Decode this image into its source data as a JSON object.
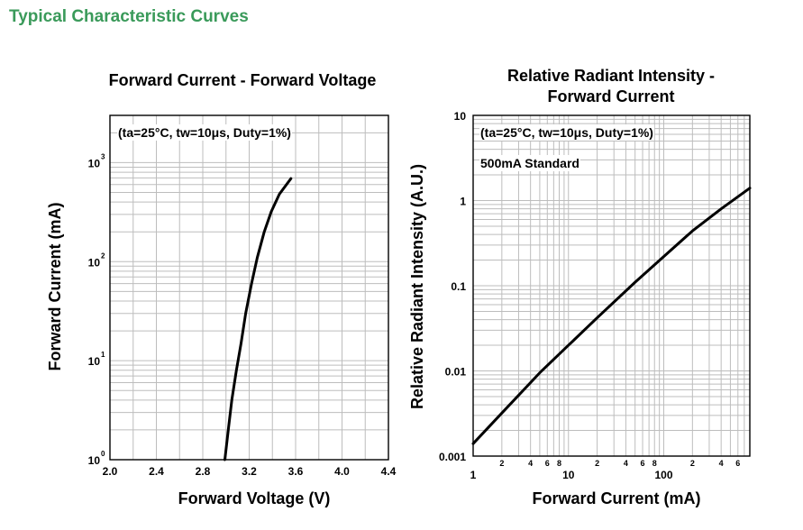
{
  "page": {
    "section_title": "Typical Characteristic Curves"
  },
  "chart_data": [
    {
      "type": "line",
      "title": "Forward Current - Forward Voltage",
      "xlabel": "Forward Voltage (V)",
      "ylabel": "Forward Current (mA)",
      "xscale": "linear",
      "yscale": "log",
      "xlim": [
        2.0,
        4.4
      ],
      "ylim": [
        1,
        3000
      ],
      "x_ticks": [
        "2.0",
        "2.4",
        "2.8",
        "3.2",
        "3.6",
        "4.0",
        "4.4"
      ],
      "y_ticks": [
        {
          "base": "10",
          "exp": "0",
          "value": 1
        },
        {
          "base": "10",
          "exp": "1",
          "value": 10
        },
        {
          "base": "10",
          "exp": "2",
          "value": 100
        },
        {
          "base": "10",
          "exp": "3",
          "value": 1000
        }
      ],
      "annotation": "(ta=25°C, tw=10μs, Duty=1%)",
      "grid": true,
      "series": [
        {
          "x": [
            2.99,
            3.02,
            3.05,
            3.09,
            3.13,
            3.17,
            3.22,
            3.27,
            3.33,
            3.39,
            3.46,
            3.56
          ],
          "y": [
            1,
            2,
            4,
            8,
            15,
            30,
            60,
            110,
            200,
            320,
            480,
            690
          ]
        }
      ]
    },
    {
      "type": "line",
      "title_lines": [
        "Relative Radiant Intensity -",
        "Forward Current"
      ],
      "xlabel": "Forward Current (mA)",
      "ylabel": "Relative Radiant Intensity (A.U.)",
      "xscale": "log",
      "yscale": "log",
      "xlim": [
        1,
        800
      ],
      "ylim": [
        0.001,
        10
      ],
      "x_major_ticks": [
        {
          "label": "1",
          "value": 1
        },
        {
          "label": "10",
          "value": 10
        },
        {
          "label": "100",
          "value": 100
        }
      ],
      "x_minor_ticks": [
        {
          "label": "2",
          "value": 2
        },
        {
          "label": "4",
          "value": 4
        },
        {
          "label": "6",
          "value": 6
        },
        {
          "label": "8",
          "value": 8
        },
        {
          "label": "2",
          "value": 20
        },
        {
          "label": "4",
          "value": 40
        },
        {
          "label": "6",
          "value": 60
        },
        {
          "label": "8",
          "value": 80
        },
        {
          "label": "2",
          "value": 200
        },
        {
          "label": "4",
          "value": 400
        },
        {
          "label": "6",
          "value": 600
        }
      ],
      "y_ticks": [
        {
          "label": "0.001",
          "value": 0.001
        },
        {
          "label": "0.01",
          "value": 0.01
        },
        {
          "label": "0.1",
          "value": 0.1
        },
        {
          "label": "1",
          "value": 1
        },
        {
          "label": "10",
          "value": 10
        }
      ],
      "annotation": "(ta=25°C, tw=10μs, Duty=1%)",
      "annotation2": "500mA Standard",
      "grid": true,
      "series": [
        {
          "x": [
            1,
            2,
            5,
            10,
            20,
            50,
            100,
            200,
            400,
            800
          ],
          "y": [
            0.0014,
            0.0032,
            0.0095,
            0.02,
            0.042,
            0.11,
            0.22,
            0.44,
            0.8,
            1.4
          ]
        }
      ]
    }
  ]
}
